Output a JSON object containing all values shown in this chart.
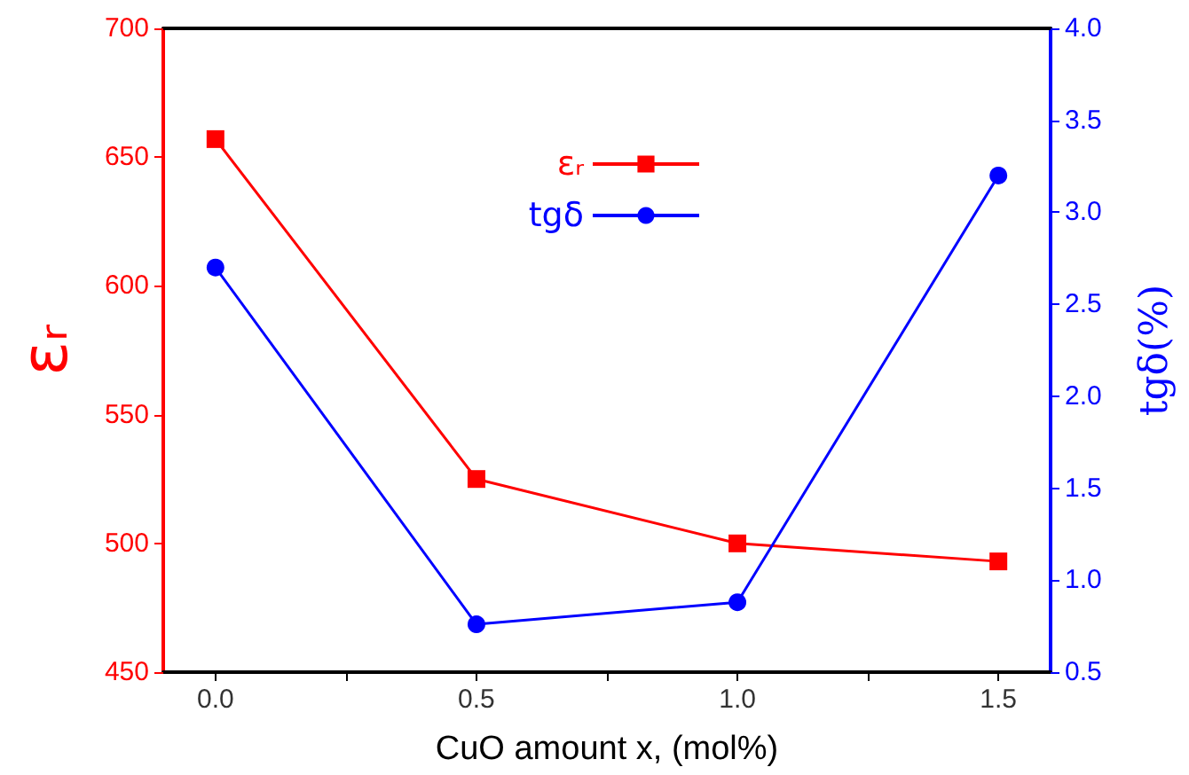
{
  "chart_data": {
    "type": "line",
    "xlabel": "CuO amount x, (mol%)",
    "ylabel": "εᵣ",
    "y2label": "tgδ(%)",
    "x": [
      0,
      0.5,
      1.0,
      1.5
    ],
    "series": [
      {
        "name": "εᵣ",
        "color": "#ff0000",
        "values": [
          657,
          525,
          500,
          493
        ],
        "marker": "square"
      },
      {
        "name": "tgδ",
        "color": "#0000ff",
        "values": [
          2.7,
          0.76,
          0.88,
          3.2
        ],
        "marker": "circle",
        "axis": "y2"
      }
    ],
    "xlim": [
      -0.1,
      1.6
    ],
    "xticks": [
      {
        "value": 0,
        "label": "0.0"
      },
      {
        "value": 0.25,
        "label": null
      },
      {
        "value": 0.5,
        "label": "0.5"
      },
      {
        "value": 0.75,
        "label": null
      },
      {
        "value": 1.0,
        "label": "1.0"
      },
      {
        "value": 1.25,
        "label": null
      },
      {
        "value": 1.5,
        "label": "1.5"
      }
    ],
    "ylim": [
      450,
      700
    ],
    "yticks": [
      450,
      500,
      550,
      600,
      650,
      700
    ],
    "y2lim": [
      0.5,
      4.0
    ],
    "y2ticks": [
      {
        "value": 0.5,
        "label": "0.5"
      },
      {
        "value": 1.0,
        "label": "1.0"
      },
      {
        "value": 1.5,
        "label": "1.5"
      },
      {
        "value": 2.0,
        "label": "2.0"
      },
      {
        "value": 2.5,
        "label": "2.5"
      },
      {
        "value": 3.0,
        "label": "3.0"
      },
      {
        "value": 3.5,
        "label": "3.5"
      },
      {
        "value": 4.0,
        "label": "4.0"
      }
    ],
    "legend": "top right",
    "grid": false,
    "line_style": "solid"
  }
}
